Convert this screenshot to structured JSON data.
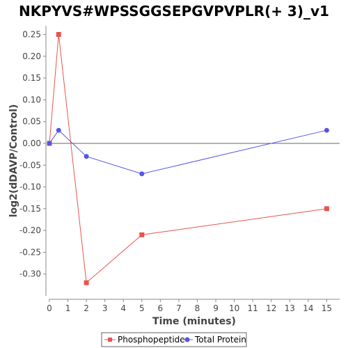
{
  "chart_data": {
    "type": "line",
    "title": "NKPYVS#WPSSGGSEPGVPVPLR(+ 3)_v1",
    "xlabel": "Time (minutes)",
    "ylabel": "log2(dDAVP/Control)",
    "xlim": [
      0,
      15.7
    ],
    "ylim": [
      -0.35,
      0.27
    ],
    "x_ticks": [
      "0",
      "1",
      "2",
      "3",
      "4",
      "5",
      "6",
      "7",
      "8",
      "9",
      "10",
      "11",
      "12",
      "13",
      "14",
      "15"
    ],
    "y_ticks": [
      "0.25",
      "0.20",
      "0.15",
      "0.10",
      "0.05",
      "0.00",
      "-0.05",
      "-0.10",
      "-0.15",
      "-0.20",
      "-0.25",
      "-0.30"
    ],
    "grid": false,
    "legend_position": "bottom-center",
    "series": [
      {
        "name": "Phosphopeptide",
        "color": "#e8534f",
        "marker": "square",
        "x": [
          0,
          0.5,
          2,
          5,
          15
        ],
        "y": [
          0.0,
          0.25,
          -0.32,
          -0.21,
          -0.15
        ]
      },
      {
        "name": "Total Protein",
        "color": "#5555e6",
        "marker": "circle",
        "x": [
          0,
          0.5,
          2,
          5,
          15
        ],
        "y": [
          0.0,
          0.03,
          -0.03,
          -0.07,
          0.03
        ]
      }
    ]
  }
}
